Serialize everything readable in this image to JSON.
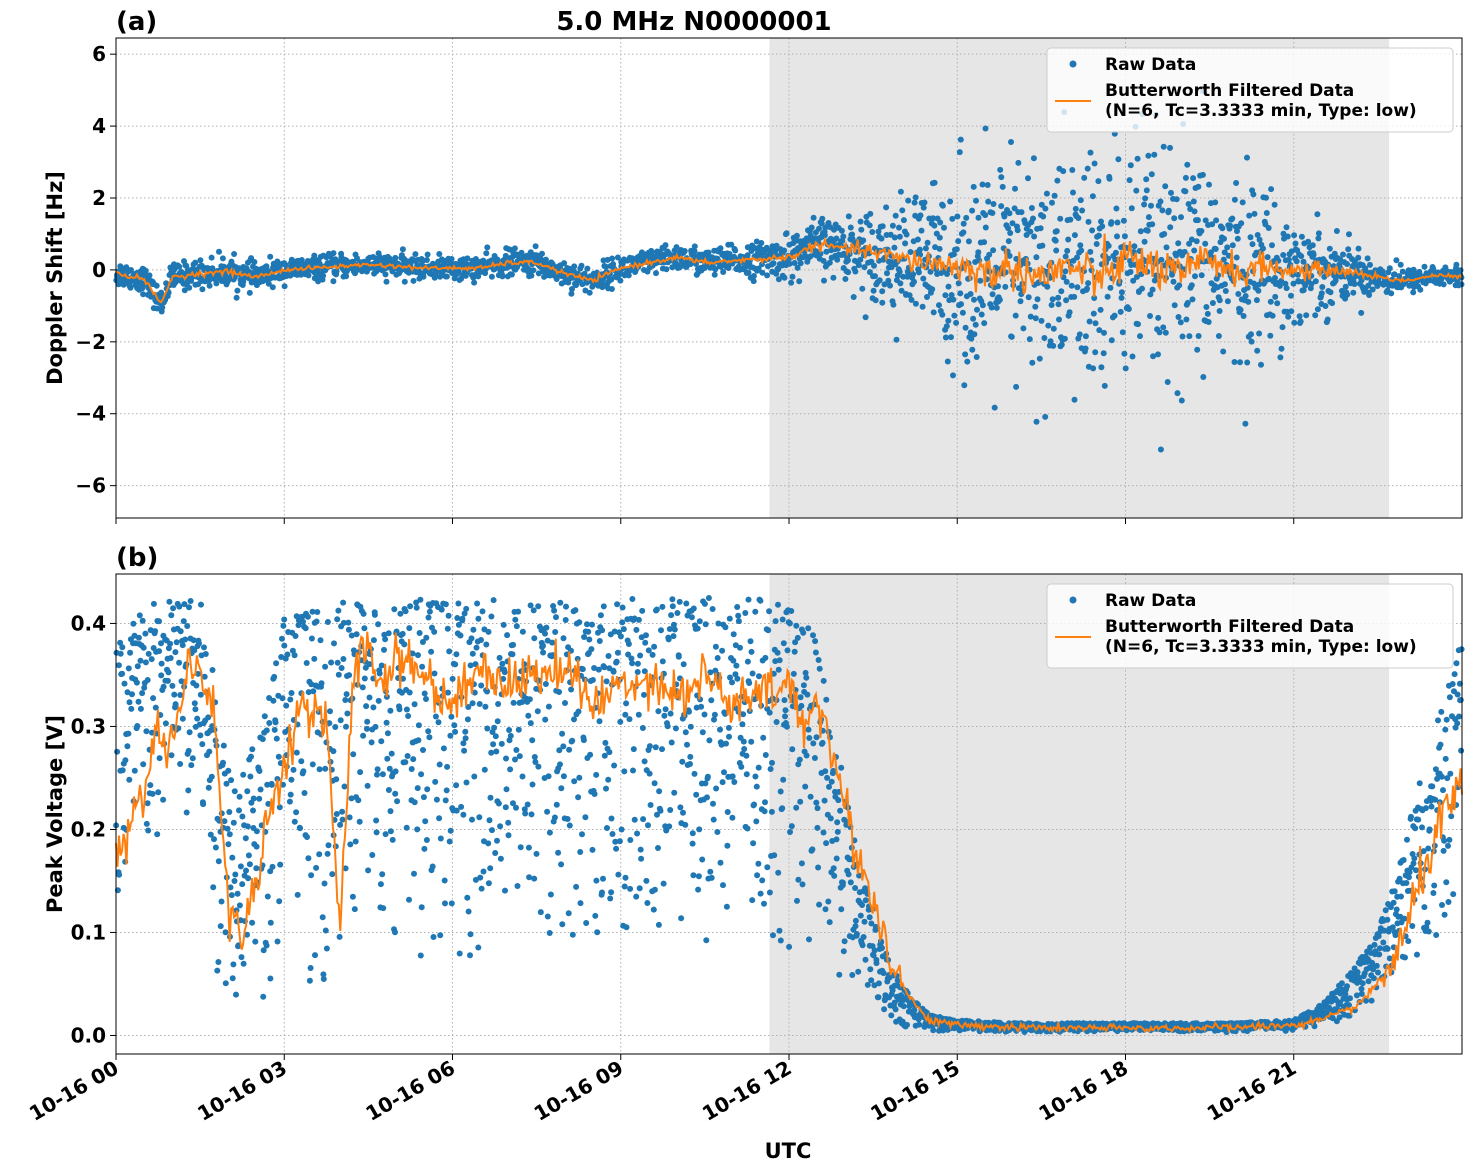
{
  "chart_data": [
    {
      "type": "scatter",
      "panel_label": "(a)",
      "title": "5.0 MHz N0000001",
      "ylabel": "Doppler Shift [Hz]",
      "xlabel": "",
      "x_unit": "hours since 10-16 00 UTC",
      "xlim": [
        0,
        24
      ],
      "ylim": [
        -6.9,
        6.45
      ],
      "yticks": [
        -6,
        -4,
        -2,
        0,
        2,
        4,
        6
      ],
      "ytick_labels": [
        "−6",
        "−4",
        "−2",
        "0",
        "2",
        "4",
        "6"
      ],
      "grid": true,
      "legend_placement": "upper-right",
      "shaded_interval": [
        11.65,
        22.7
      ],
      "series": [
        {
          "name": "Raw Data",
          "kind": "scatter",
          "color": "#1f77b4",
          "envelope_x": [
            0,
            1,
            2,
            3,
            4,
            5,
            6,
            7,
            8,
            9,
            10,
            11,
            11.65,
            12,
            13,
            14,
            15,
            16,
            17,
            18,
            19,
            20,
            21,
            22,
            22.7,
            23,
            24
          ],
          "envelope_half_width": [
            0.4,
            0.4,
            0.45,
            0.35,
            0.35,
            0.35,
            0.35,
            0.4,
            0.4,
            0.4,
            0.4,
            0.45,
            0.55,
            0.7,
            0.9,
            1.8,
            3.0,
            3.6,
            3.9,
            3.9,
            3.6,
            3.0,
            1.8,
            0.8,
            0.5,
            0.35,
            0.35
          ]
        },
        {
          "name": "Butterworth Filtered Data\n(N=6, Tc=3.3333 min, Type: low)",
          "kind": "line",
          "color": "#ff7f0e",
          "x": [
            0,
            0.5,
            0.8,
            1,
            1.5,
            2,
            2.5,
            3,
            3.5,
            4,
            4.5,
            5,
            5.5,
            6,
            6.5,
            7,
            7.5,
            8,
            8.5,
            9,
            9.5,
            10,
            10.5,
            11,
            11.5,
            12,
            12.5,
            13,
            13.5,
            14,
            14.5,
            15,
            15.5,
            16,
            16.5,
            17,
            17.5,
            18,
            18.5,
            19,
            19.5,
            20,
            20.5,
            21,
            21.5,
            22,
            22.5,
            23,
            23.5,
            24
          ],
          "y": [
            -0.1,
            -0.25,
            -0.95,
            -0.2,
            -0.1,
            -0.05,
            -0.2,
            0,
            0.05,
            0.1,
            0.15,
            0.1,
            0.05,
            0.05,
            0.05,
            0.2,
            0.2,
            -0.1,
            -0.3,
            0.05,
            0.2,
            0.35,
            0.2,
            0.25,
            0.3,
            0.35,
            0.7,
            0.6,
            0.5,
            0.3,
            0.2,
            0.1,
            -0.1,
            0.05,
            -0.2,
            0.1,
            -0.25,
            0.3,
            0.1,
            -0.2,
            0.35,
            -0.1,
            0.1,
            -0.05,
            0,
            -0.05,
            -0.2,
            -0.3,
            -0.15,
            -0.2
          ]
        }
      ]
    },
    {
      "type": "scatter",
      "panel_label": "(b)",
      "title": "",
      "ylabel": "Peak Voltage [V]",
      "xlabel": "UTC",
      "x_unit": "hours since 10-16 00 UTC",
      "xlim": [
        0,
        24
      ],
      "ylim": [
        -0.018,
        0.448
      ],
      "yticks": [
        0.0,
        0.1,
        0.2,
        0.3,
        0.4
      ],
      "ytick_labels": [
        "0.0",
        "0.1",
        "0.2",
        "0.3",
        "0.4"
      ],
      "xticks": [
        0,
        3,
        6,
        9,
        12,
        15,
        18,
        21
      ],
      "xtick_labels": [
        "10-16 00",
        "10-16 03",
        "10-16 06",
        "10-16 09",
        "10-16 12",
        "10-16 15",
        "10-16 18",
        "10-16 21"
      ],
      "grid": true,
      "legend_placement": "upper-right",
      "shaded_interval": [
        11.65,
        22.7
      ],
      "series": [
        {
          "name": "Raw Data",
          "kind": "scatter",
          "color": "#1f77b4",
          "envelope_x": [
            0,
            0.5,
            1,
            1.5,
            1.9,
            2.2,
            2.6,
            3,
            3.3,
            3.7,
            4,
            4.5,
            5,
            6,
            7,
            8,
            9,
            10,
            11,
            11.7,
            12.4,
            12.8,
            13.2,
            13.6,
            14,
            14.5,
            15,
            16,
            18,
            20,
            21,
            21.5,
            22,
            22.5,
            23,
            23.5,
            24
          ],
          "envelope_low": [
            0.05,
            0.1,
            0.2,
            0.15,
            0.03,
            0.03,
            0.03,
            0.05,
            0.05,
            0.04,
            0.04,
            0.08,
            0.08,
            0.06,
            0.07,
            0.07,
            0.06,
            0.08,
            0.08,
            0.08,
            0.07,
            0.05,
            0.03,
            0.01,
            0.005,
            0.004,
            0.003,
            0.003,
            0.003,
            0.003,
            0.004,
            0.008,
            0.015,
            0.03,
            0.05,
            0.07,
            0.1
          ],
          "envelope_high": [
            0.4,
            0.42,
            0.425,
            0.425,
            0.3,
            0.25,
            0.3,
            0.42,
            0.42,
            0.41,
            0.425,
            0.425,
            0.425,
            0.425,
            0.425,
            0.425,
            0.425,
            0.425,
            0.425,
            0.425,
            0.4,
            0.3,
            0.18,
            0.1,
            0.05,
            0.02,
            0.015,
            0.012,
            0.012,
            0.012,
            0.015,
            0.03,
            0.06,
            0.1,
            0.2,
            0.3,
            0.39
          ]
        },
        {
          "name": "Butterworth Filtered Data\n(N=6, Tc=3.3333 min, Type: low)",
          "kind": "line",
          "color": "#ff7f0e",
          "x": [
            0,
            0.25,
            0.5,
            0.75,
            1,
            1.25,
            1.5,
            1.75,
            2,
            2.25,
            2.5,
            2.75,
            3,
            3.25,
            3.5,
            3.75,
            4,
            4.25,
            4.5,
            4.75,
            5,
            5.5,
            6,
            6.5,
            7,
            7.5,
            8,
            8.5,
            9,
            9.5,
            10,
            10.5,
            11,
            11.5,
            12,
            12.25,
            12.5,
            12.75,
            13,
            13.25,
            13.5,
            13.75,
            14,
            14.25,
            14.5,
            15,
            16,
            17,
            18,
            19,
            20,
            21,
            21.5,
            22,
            22.25,
            22.5,
            22.75,
            23,
            23.25,
            23.5,
            23.75,
            24
          ],
          "y": [
            0.17,
            0.2,
            0.24,
            0.3,
            0.28,
            0.36,
            0.35,
            0.32,
            0.12,
            0.1,
            0.15,
            0.22,
            0.26,
            0.32,
            0.3,
            0.31,
            0.11,
            0.36,
            0.38,
            0.34,
            0.37,
            0.35,
            0.32,
            0.36,
            0.34,
            0.35,
            0.36,
            0.32,
            0.34,
            0.35,
            0.33,
            0.35,
            0.32,
            0.33,
            0.34,
            0.3,
            0.33,
            0.28,
            0.22,
            0.17,
            0.13,
            0.09,
            0.05,
            0.03,
            0.015,
            0.01,
            0.008,
            0.007,
            0.007,
            0.007,
            0.008,
            0.01,
            0.015,
            0.025,
            0.035,
            0.05,
            0.07,
            0.1,
            0.15,
            0.19,
            0.22,
            0.24
          ]
        }
      ]
    }
  ]
}
